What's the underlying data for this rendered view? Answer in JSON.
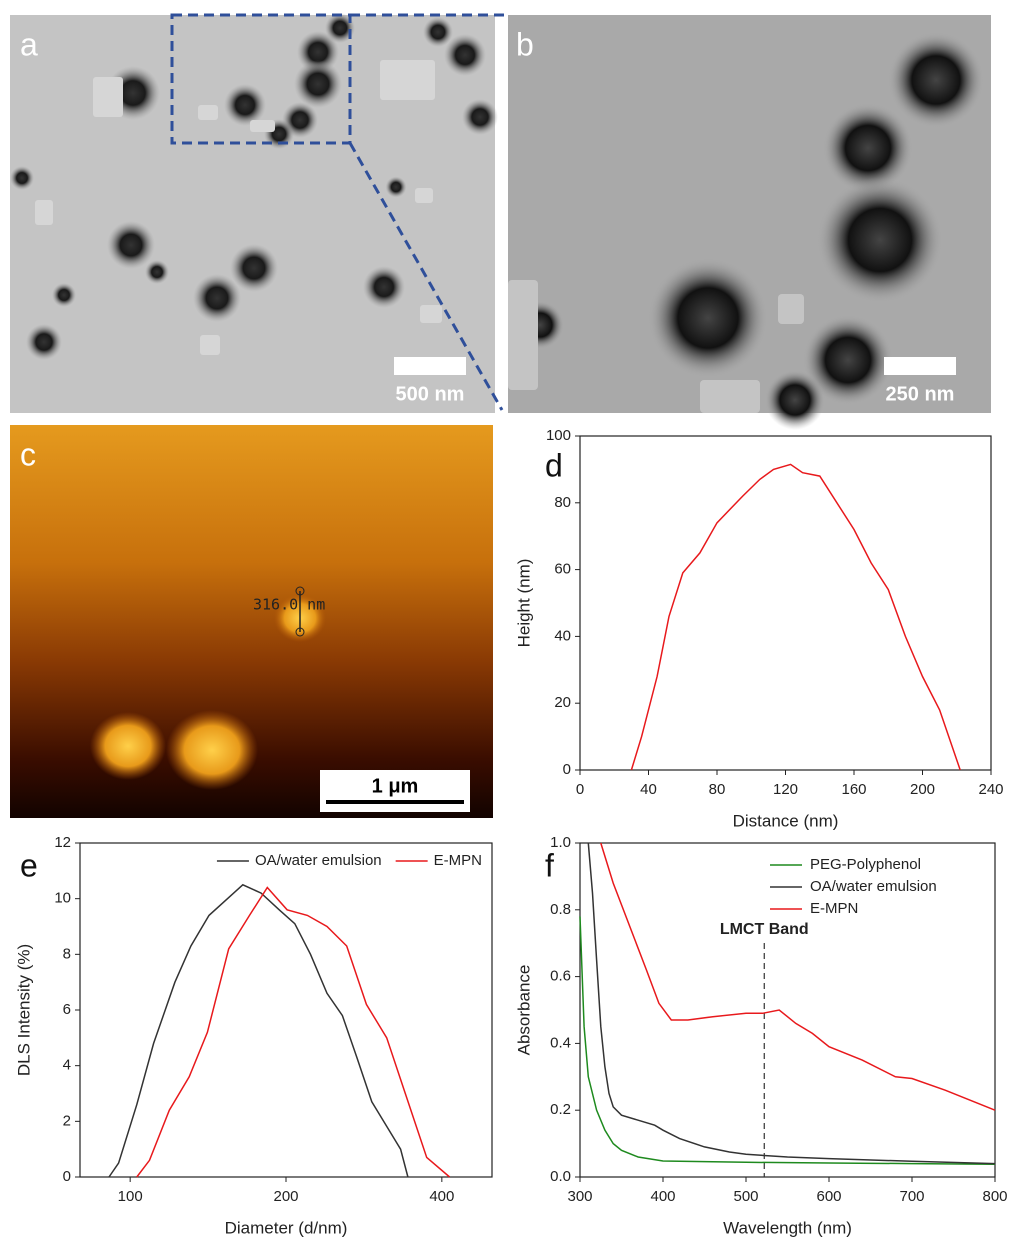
{
  "images": [
    {
      "label": "a",
      "scale_bar": "500 nm"
    },
    {
      "label": "b",
      "scale_bar": "250 nm"
    },
    {
      "label": "c",
      "scale_bar": "1 μm",
      "measurement": "316.0 nm"
    }
  ],
  "chart_data": [
    {
      "type": "line",
      "panel": "d",
      "xlabel": "Distance (nm)",
      "ylabel": "Height (nm)",
      "xlim": [
        0,
        240
      ],
      "ylim": [
        0,
        100
      ],
      "xticks": [
        0,
        40,
        80,
        120,
        160,
        200,
        240
      ],
      "yticks": [
        0,
        20,
        40,
        60,
        80,
        100
      ],
      "series": [
        {
          "color": "#e8191c",
          "x": [
            30,
            36,
            45,
            52,
            60,
            70,
            80,
            95,
            105,
            113,
            123,
            130,
            140,
            160,
            170,
            180,
            190,
            200,
            210,
            222
          ],
          "values": [
            0,
            10,
            28,
            46,
            59,
            65,
            74,
            82,
            87,
            90,
            91.5,
            89,
            88,
            72,
            62,
            54,
            40,
            28,
            18,
            0
          ]
        }
      ]
    },
    {
      "type": "line",
      "panel": "e",
      "xlabel": "Diameter (d/nm)",
      "ylabel": "DLS Intensity (%)",
      "xscale": "log",
      "xlim": [
        80,
        500
      ],
      "ylim": [
        0,
        12
      ],
      "xticks": [
        100,
        200,
        400
      ],
      "yticks": [
        0,
        2,
        4,
        6,
        8,
        10,
        12
      ],
      "legend": "top-right",
      "series": [
        {
          "name": "OA/water emulsion",
          "color": "#333333",
          "x": [
            91,
            95,
            103,
            111,
            122,
            131,
            142,
            165,
            179,
            194,
            208,
            223,
            240,
            257,
            274,
            293,
            333,
            344
          ],
          "values": [
            0,
            0.5,
            2.6,
            4.8,
            7,
            8.3,
            9.4,
            10.5,
            10.2,
            9.6,
            9.1,
            8,
            6.6,
            5.8,
            4.3,
            2.7,
            1,
            0
          ]
        },
        {
          "name": "E-MPN",
          "color": "#e8191c",
          "x": [
            103,
            109,
            119,
            130,
            141,
            155,
            170,
            184,
            201,
            220,
            240,
            262,
            286,
            313,
            340,
            374,
            414
          ],
          "values": [
            0,
            0.6,
            2.4,
            3.6,
            5.2,
            8.2,
            9.4,
            10.4,
            9.6,
            9.4,
            9.0,
            8.3,
            6.2,
            5.0,
            3.0,
            0.7,
            0
          ]
        }
      ]
    },
    {
      "type": "line",
      "panel": "f",
      "xlabel": "Wavelength (nm)",
      "ylabel": "Absorbance",
      "xlim": [
        300,
        800
      ],
      "ylim": [
        0,
        1
      ],
      "xticks": [
        300,
        400,
        500,
        600,
        700,
        800
      ],
      "yticks": [
        {
          "value": 0,
          "label": "0.0"
        },
        0.2,
        0.4,
        0.6,
        0.8,
        {
          "value": 1,
          "label": "1.0"
        }
      ],
      "legend": "top-right",
      "annotation": {
        "text": "LMCT Band",
        "x": 522
      },
      "series": [
        {
          "name": "PEG-Polyphenol",
          "color": "#1e8a1e",
          "x": [
            300,
            305,
            310,
            320,
            330,
            340,
            350,
            370,
            400,
            500,
            600,
            700,
            800
          ],
          "values": [
            0.78,
            0.45,
            0.3,
            0.2,
            0.14,
            0.1,
            0.08,
            0.06,
            0.048,
            0.044,
            0.042,
            0.04,
            0.038
          ]
        },
        {
          "name": "OA/water emulsion",
          "color": "#333333",
          "x": [
            310,
            315,
            320,
            325,
            330,
            335,
            340,
            350,
            370,
            390,
            400,
            420,
            450,
            480,
            500,
            550,
            600,
            700,
            800
          ],
          "values": [
            1.0,
            0.85,
            0.65,
            0.45,
            0.33,
            0.25,
            0.21,
            0.185,
            0.17,
            0.155,
            0.14,
            0.115,
            0.09,
            0.075,
            0.068,
            0.06,
            0.055,
            0.047,
            0.04
          ]
        },
        {
          "name": "E-MPN",
          "color": "#e8191c",
          "x": [
            325,
            340,
            360,
            380,
            395,
            410,
            430,
            460,
            500,
            520,
            540,
            560,
            580,
            600,
            640,
            680,
            700,
            740,
            770,
            800
          ],
          "values": [
            1.0,
            0.88,
            0.75,
            0.62,
            0.52,
            0.47,
            0.47,
            0.48,
            0.49,
            0.49,
            0.5,
            0.46,
            0.43,
            0.39,
            0.35,
            0.3,
            0.295,
            0.26,
            0.23,
            0.2
          ]
        }
      ]
    }
  ]
}
